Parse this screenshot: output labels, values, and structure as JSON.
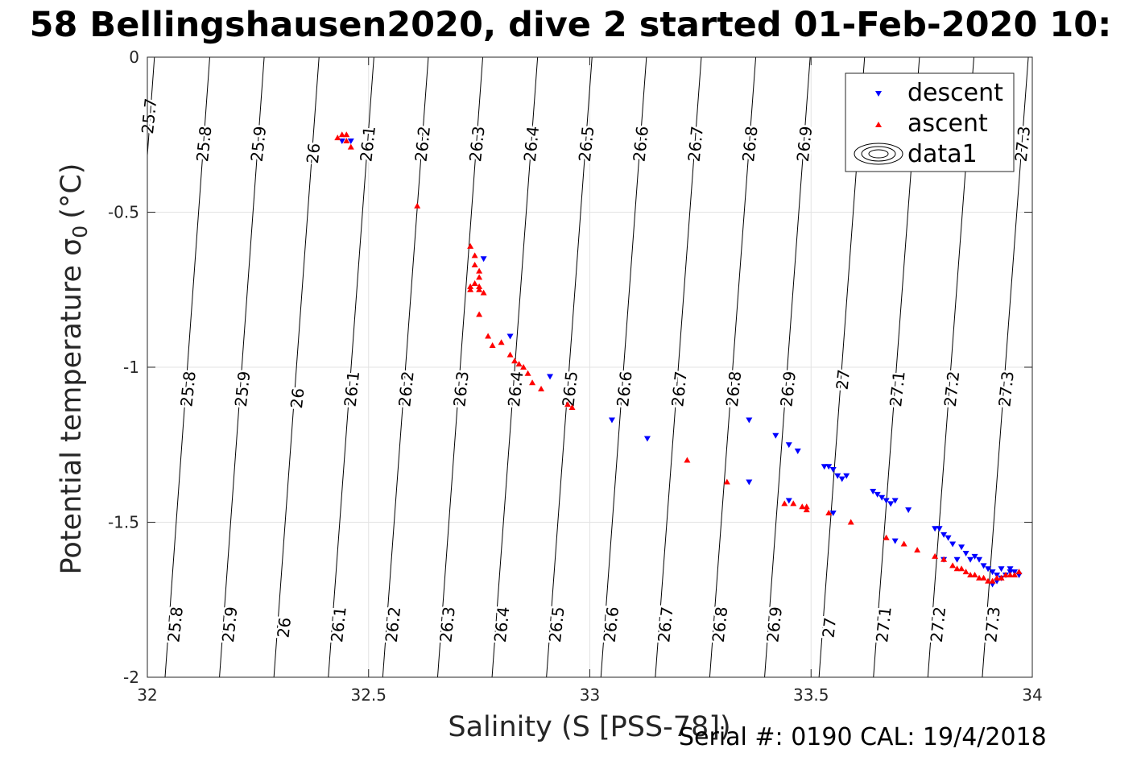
{
  "title": "58 Bellingshausen2020, dive 2 started 01-Feb-2020 10:",
  "footer": "Serial #: 0190  CAL: 19/4/2018",
  "chart_data": {
    "type": "scatter",
    "xlabel": "Salinity (S [PSS-78])",
    "ylabel": "Potential temperature σ₀ (°C)",
    "ylabel_main": "Potential temperature σ",
    "ylabel_sub": "0",
    "ylabel_unit": "(°C)",
    "xlim": [
      32,
      34
    ],
    "ylim": [
      -2,
      0
    ],
    "x_ticks": [
      32,
      32.5,
      33,
      33.5,
      34
    ],
    "x_tick_labels": [
      "32",
      "32.5",
      "33",
      "33.5",
      "34"
    ],
    "y_ticks": [
      0,
      -0.5,
      -1,
      -1.5,
      -2
    ],
    "y_tick_labels": [
      "0",
      "-0.5",
      "-1",
      "-1.5",
      "-2"
    ],
    "grid": true,
    "legend": {
      "location": "top-right",
      "entries": [
        "descent",
        "ascent",
        "data1"
      ]
    },
    "colors": {
      "descent": "#0000ff",
      "ascent": "#ff0000",
      "contour": "#000000",
      "grid": "#e3e3e3"
    },
    "contours": {
      "levels": [
        25.7,
        25.8,
        25.9,
        26,
        26.1,
        26.2,
        26.3,
        26.4,
        26.5,
        26.6,
        26.7,
        26.8,
        26.9,
        27,
        27.1,
        27.2,
        27.3
      ],
      "level_labels": [
        "25.7",
        "25.8",
        "25.9",
        "26",
        "26.1",
        "26.2",
        "26.3",
        "26.4",
        "26.5",
        "26.6",
        "26.7",
        "26.8",
        "26.9",
        "27",
        "27.1",
        "27.2",
        "27.3"
      ],
      "x_at_top": [
        32.016,
        32.141,
        32.264,
        32.388,
        32.512,
        32.635,
        32.758,
        32.882,
        33.005,
        33.128,
        33.252,
        33.375,
        33.498,
        33.621,
        33.745,
        33.868,
        33.991
      ],
      "x_at_bottom": [
        31.915,
        32.04,
        32.163,
        32.286,
        32.409,
        32.532,
        32.656,
        32.779,
        32.902,
        33.025,
        33.148,
        33.271,
        33.395,
        33.518,
        33.641,
        33.764,
        33.887
      ],
      "top_labels": [
        {
          "level": "25.7",
          "x": 32.004,
          "y": -0.19
        },
        {
          "level": "25.8",
          "x": 32.128,
          "y": -0.28
        },
        {
          "level": "25.9",
          "x": 32.251,
          "y": -0.28
        },
        {
          "level": "26",
          "x": 32.375,
          "y": -0.31
        },
        {
          "level": "26.1",
          "x": 32.498,
          "y": -0.28
        },
        {
          "level": "26.2",
          "x": 32.622,
          "y": -0.28
        },
        {
          "level": "26.3",
          "x": 32.745,
          "y": -0.28
        },
        {
          "level": "26.4",
          "x": 32.868,
          "y": -0.28
        },
        {
          "level": "26.5",
          "x": 32.992,
          "y": -0.28
        },
        {
          "level": "26.6",
          "x": 33.115,
          "y": -0.28
        },
        {
          "level": "26.7",
          "x": 33.239,
          "y": -0.28
        },
        {
          "level": "26.8",
          "x": 33.362,
          "y": -0.28
        },
        {
          "level": "26.9",
          "x": 33.485,
          "y": -0.28
        },
        {
          "level": "27.3",
          "x": 33.978,
          "y": -0.28
        }
      ],
      "mid_labels": [
        {
          "level": "25.8",
          "x": 32.092,
          "y": -1.07
        },
        {
          "level": "25.9",
          "x": 32.215,
          "y": -1.07
        },
        {
          "level": "26",
          "x": 32.339,
          "y": -1.1
        },
        {
          "level": "26.1",
          "x": 32.462,
          "y": -1.07
        },
        {
          "level": "26.2",
          "x": 32.585,
          "y": -1.07
        },
        {
          "level": "26.3",
          "x": 32.709,
          "y": -1.07
        },
        {
          "level": "26.4",
          "x": 32.832,
          "y": -1.07
        },
        {
          "level": "26.5",
          "x": 32.955,
          "y": -1.07
        },
        {
          "level": "26.6",
          "x": 33.078,
          "y": -1.07
        },
        {
          "level": "26.7",
          "x": 33.202,
          "y": -1.07
        },
        {
          "level": "26.8",
          "x": 33.325,
          "y": -1.07
        },
        {
          "level": "26.9",
          "x": 33.448,
          "y": -1.07
        },
        {
          "level": "27",
          "x": 33.572,
          "y": -1.04
        },
        {
          "level": "27.1",
          "x": 33.695,
          "y": -1.07
        },
        {
          "level": "27.2",
          "x": 33.818,
          "y": -1.07
        },
        {
          "level": "27.3",
          "x": 33.941,
          "y": -1.07
        }
      ],
      "bottom_labels": [
        {
          "level": "25.8",
          "x": 32.063,
          "y": -1.83
        },
        {
          "level": "25.9",
          "x": 32.186,
          "y": -1.83
        },
        {
          "level": "26",
          "x": 32.309,
          "y": -1.84
        },
        {
          "level": "26.1",
          "x": 32.432,
          "y": -1.83
        },
        {
          "level": "26.2",
          "x": 32.555,
          "y": -1.83
        },
        {
          "level": "26.3",
          "x": 32.678,
          "y": -1.83
        },
        {
          "level": "26.4",
          "x": 32.801,
          "y": -1.83
        },
        {
          "level": "26.5",
          "x": 32.925,
          "y": -1.83
        },
        {
          "level": "26.6",
          "x": 33.048,
          "y": -1.83
        },
        {
          "level": "26.7",
          "x": 33.171,
          "y": -1.83
        },
        {
          "level": "26.8",
          "x": 33.294,
          "y": -1.83
        },
        {
          "level": "26.9",
          "x": 33.417,
          "y": -1.83
        },
        {
          "level": "27",
          "x": 33.541,
          "y": -1.84
        },
        {
          "level": "27.1",
          "x": 33.664,
          "y": -1.83
        },
        {
          "level": "27.2",
          "x": 33.787,
          "y": -1.83
        },
        {
          "level": "27.3",
          "x": 33.91,
          "y": -1.83
        }
      ]
    },
    "series": [
      {
        "name": "descent",
        "marker": "triangle-down",
        "color": "#0000ff",
        "points": [
          [
            32.44,
            -0.27
          ],
          [
            32.46,
            -0.27
          ],
          [
            32.76,
            -0.65
          ],
          [
            32.82,
            -0.9
          ],
          [
            32.91,
            -1.03
          ],
          [
            33.05,
            -1.17
          ],
          [
            33.13,
            -1.23
          ],
          [
            33.36,
            -1.37
          ],
          [
            33.36,
            -1.17
          ],
          [
            33.42,
            -1.22
          ],
          [
            33.45,
            -1.25
          ],
          [
            33.47,
            -1.27
          ],
          [
            33.45,
            -1.43
          ],
          [
            33.53,
            -1.32
          ],
          [
            33.54,
            -1.32
          ],
          [
            33.55,
            -1.33
          ],
          [
            33.56,
            -1.35
          ],
          [
            33.57,
            -1.36
          ],
          [
            33.58,
            -1.35
          ],
          [
            33.64,
            -1.4
          ],
          [
            33.65,
            -1.41
          ],
          [
            33.66,
            -1.42
          ],
          [
            33.67,
            -1.43
          ],
          [
            33.68,
            -1.44
          ],
          [
            33.69,
            -1.43
          ],
          [
            33.72,
            -1.46
          ],
          [
            33.78,
            -1.52
          ],
          [
            33.79,
            -1.52
          ],
          [
            33.8,
            -1.54
          ],
          [
            33.81,
            -1.55
          ],
          [
            33.82,
            -1.57
          ],
          [
            33.84,
            -1.58
          ],
          [
            33.85,
            -1.6
          ],
          [
            33.86,
            -1.62
          ],
          [
            33.87,
            -1.61
          ],
          [
            33.88,
            -1.62
          ],
          [
            33.89,
            -1.64
          ],
          [
            33.9,
            -1.65
          ],
          [
            33.91,
            -1.66
          ],
          [
            33.92,
            -1.67
          ],
          [
            33.93,
            -1.68
          ],
          [
            33.94,
            -1.67
          ],
          [
            33.95,
            -1.66
          ],
          [
            33.96,
            -1.66
          ],
          [
            33.97,
            -1.67
          ],
          [
            33.93,
            -1.65
          ],
          [
            33.95,
            -1.65
          ],
          [
            33.55,
            -1.47
          ],
          [
            33.69,
            -1.56
          ],
          [
            33.8,
            -1.62
          ],
          [
            33.83,
            -1.62
          ],
          [
            33.91,
            -1.7
          ],
          [
            33.92,
            -1.69
          ]
        ]
      },
      {
        "name": "ascent",
        "marker": "triangle-up",
        "color": "#ff0000",
        "points": [
          [
            32.43,
            -0.26
          ],
          [
            32.44,
            -0.25
          ],
          [
            32.45,
            -0.25
          ],
          [
            32.45,
            -0.27
          ],
          [
            32.46,
            -0.29
          ],
          [
            32.61,
            -0.48
          ],
          [
            32.73,
            -0.61
          ],
          [
            32.74,
            -0.64
          ],
          [
            32.74,
            -0.67
          ],
          [
            32.75,
            -0.69
          ],
          [
            32.75,
            -0.71
          ],
          [
            32.74,
            -0.73
          ],
          [
            32.73,
            -0.74
          ],
          [
            32.73,
            -0.75
          ],
          [
            32.75,
            -0.74
          ],
          [
            32.75,
            -0.75
          ],
          [
            32.76,
            -0.76
          ],
          [
            32.75,
            -0.83
          ],
          [
            32.77,
            -0.9
          ],
          [
            32.78,
            -0.93
          ],
          [
            32.8,
            -0.92
          ],
          [
            32.82,
            -0.96
          ],
          [
            32.83,
            -0.98
          ],
          [
            32.84,
            -0.99
          ],
          [
            32.85,
            -1.0
          ],
          [
            32.86,
            -1.02
          ],
          [
            32.87,
            -1.05
          ],
          [
            32.89,
            -1.07
          ],
          [
            32.95,
            -1.12
          ],
          [
            32.96,
            -1.13
          ],
          [
            33.22,
            -1.3
          ],
          [
            33.31,
            -1.37
          ],
          [
            33.44,
            -1.44
          ],
          [
            33.46,
            -1.44
          ],
          [
            33.48,
            -1.45
          ],
          [
            33.49,
            -1.46
          ],
          [
            33.49,
            -1.45
          ],
          [
            33.54,
            -1.47
          ],
          [
            33.59,
            -1.5
          ],
          [
            33.67,
            -1.55
          ],
          [
            33.71,
            -1.57
          ],
          [
            33.74,
            -1.59
          ],
          [
            33.78,
            -1.61
          ],
          [
            33.8,
            -1.62
          ],
          [
            33.82,
            -1.64
          ],
          [
            33.83,
            -1.65
          ],
          [
            33.84,
            -1.65
          ],
          [
            33.85,
            -1.66
          ],
          [
            33.86,
            -1.67
          ],
          [
            33.87,
            -1.67
          ],
          [
            33.88,
            -1.68
          ],
          [
            33.89,
            -1.68
          ],
          [
            33.9,
            -1.69
          ],
          [
            33.91,
            -1.69
          ],
          [
            33.92,
            -1.68
          ],
          [
            33.93,
            -1.68
          ],
          [
            33.94,
            -1.67
          ],
          [
            33.95,
            -1.67
          ],
          [
            33.96,
            -1.67
          ],
          [
            33.97,
            -1.66
          ]
        ]
      }
    ]
  }
}
